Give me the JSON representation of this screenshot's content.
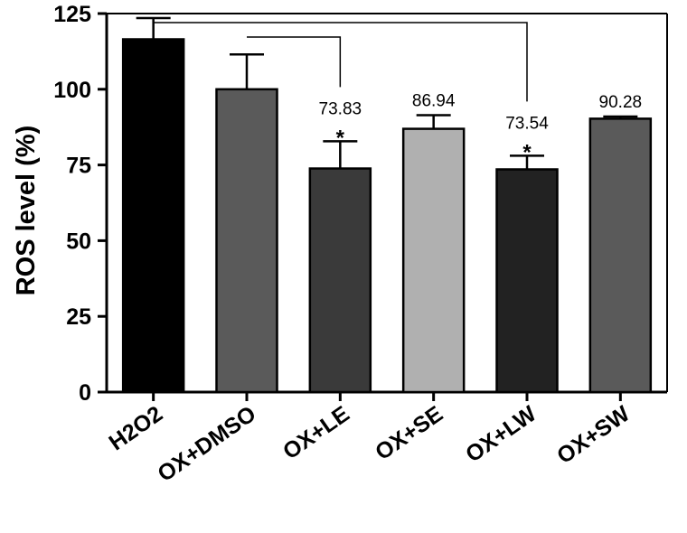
{
  "chart_data": {
    "type": "bar",
    "categories": [
      "H2O2",
      "OX+DMSO",
      "OX+LE",
      "OX+SE",
      "OX+LW",
      "OX+SW"
    ],
    "values": [
      116.5,
      100,
      73.83,
      86.94,
      73.54,
      90.28
    ],
    "errors": [
      7,
      11.5,
      9,
      4.5,
      4.5,
      0.7
    ],
    "data_labels": [
      "",
      "",
      "73.83",
      "86.94",
      "73.54",
      "90.28"
    ],
    "significance": [
      "",
      "",
      "*",
      "",
      "*",
      ""
    ],
    "bar_colors": [
      "#000000",
      "#5a5a5a",
      "#3a3a3a",
      "#b0b0b0",
      "#222222",
      "#5a5a5a"
    ],
    "comparisons": [
      {
        "from": "OX+DMSO",
        "to": "OX+LE"
      },
      {
        "from": "H2O2",
        "to": "OX+LW"
      }
    ],
    "ylabel": "ROS level (%)",
    "xlabel": "",
    "title": "",
    "ylim": [
      0,
      125
    ],
    "yticks": [
      0,
      25,
      50,
      75,
      100,
      125
    ],
    "grid": false,
    "legend": "none"
  }
}
